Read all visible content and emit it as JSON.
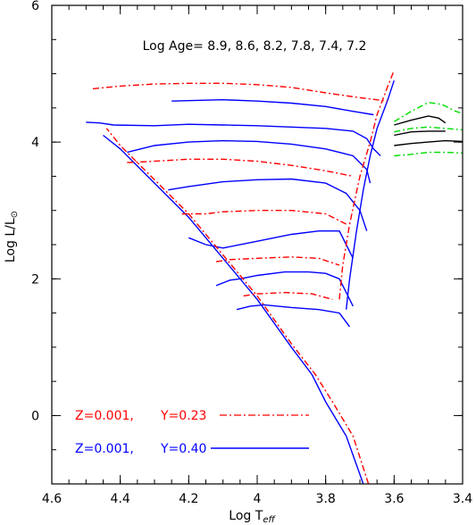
{
  "chart_data": {
    "type": "line",
    "title": "",
    "xlabel_main": "Log T",
    "xlabel_sub": "eff",
    "ylabel_main": "Log L/L",
    "ylabel_sub": "⊙",
    "xlim": [
      4.6,
      3.4
    ],
    "ylim": [
      -1,
      6
    ],
    "x_ticks": [
      4.6,
      4.4,
      4.2,
      4,
      3.8,
      3.6,
      3.4
    ],
    "x_tick_labels": [
      "4.6",
      "4.4",
      "4.2",
      "4",
      "3.8",
      "3.6",
      "3.4"
    ],
    "y_ticks": [
      0,
      2,
      4,
      6
    ],
    "y_tick_labels": [
      "0",
      "2",
      "4",
      "6"
    ],
    "annotation": "Log Age=  8.9, 8.6, 8.2, 7.8, 7.4, 7.2",
    "legend": [
      {
        "label_z": "Z=0.001,",
        "label_y": "Y=0.23",
        "color": "#ff0000",
        "style": "dash-dot"
      },
      {
        "label_z": "Z=0.001,",
        "label_y": "Y=0.40",
        "color": "#0000ff",
        "style": "solid"
      }
    ],
    "series": [
      {
        "id": "blue-ms",
        "color": "#0000ff",
        "style": "solid",
        "points": [
          [
            3.69,
            -1.0
          ],
          [
            3.74,
            -0.3
          ],
          [
            3.8,
            0.2
          ],
          [
            3.84,
            0.6
          ],
          [
            3.9,
            1.0
          ],
          [
            4.0,
            1.7
          ],
          [
            4.1,
            2.3
          ],
          [
            4.2,
            2.9
          ],
          [
            4.3,
            3.4
          ],
          [
            4.4,
            3.9
          ],
          [
            4.45,
            4.1
          ]
        ]
      },
      {
        "id": "blue-iso-1",
        "color": "#0000ff",
        "style": "solid",
        "points": [
          [
            4.5,
            4.29
          ],
          [
            4.46,
            4.28
          ],
          [
            4.42,
            4.25
          ],
          [
            4.3,
            4.24
          ],
          [
            4.2,
            4.26
          ],
          [
            4.1,
            4.25
          ],
          [
            4.0,
            4.24
          ],
          [
            3.9,
            4.22
          ],
          [
            3.8,
            4.2
          ],
          [
            3.72,
            4.16
          ],
          [
            3.68,
            4.05
          ],
          [
            3.66,
            3.9
          ],
          [
            3.64,
            3.8
          ]
        ]
      },
      {
        "id": "blue-iso-2",
        "color": "#0000ff",
        "style": "solid",
        "points": [
          [
            4.38,
            3.85
          ],
          [
            4.3,
            3.95
          ],
          [
            4.2,
            4.0
          ],
          [
            4.1,
            4.02
          ],
          [
            4.0,
            4.01
          ],
          [
            3.9,
            3.97
          ],
          [
            3.8,
            3.9
          ],
          [
            3.72,
            3.8
          ],
          [
            3.68,
            3.6
          ],
          [
            3.67,
            3.4
          ]
        ]
      },
      {
        "id": "blue-iso-3",
        "color": "#0000ff",
        "style": "solid",
        "points": [
          [
            4.26,
            3.3
          ],
          [
            4.2,
            3.35
          ],
          [
            4.1,
            3.42
          ],
          [
            4.0,
            3.45
          ],
          [
            3.9,
            3.46
          ],
          [
            3.8,
            3.4
          ],
          [
            3.74,
            3.25
          ],
          [
            3.7,
            3.0
          ],
          [
            3.68,
            2.7
          ]
        ]
      },
      {
        "id": "blue-iso-4",
        "color": "#0000ff",
        "style": "solid",
        "points": [
          [
            4.2,
            2.6
          ],
          [
            4.15,
            2.5
          ],
          [
            4.1,
            2.45
          ],
          [
            4.0,
            2.55
          ],
          [
            3.9,
            2.65
          ],
          [
            3.82,
            2.7
          ],
          [
            3.76,
            2.7
          ],
          [
            3.74,
            2.5
          ],
          [
            3.72,
            2.3
          ]
        ]
      },
      {
        "id": "blue-iso-5",
        "color": "#0000ff",
        "style": "solid",
        "points": [
          [
            4.12,
            1.9
          ],
          [
            4.08,
            1.98
          ],
          [
            4.05,
            2.0
          ],
          [
            4.0,
            2.05
          ],
          [
            3.92,
            2.1
          ],
          [
            3.85,
            2.1
          ],
          [
            3.8,
            2.08
          ],
          [
            3.76,
            2.0
          ],
          [
            3.74,
            1.8
          ],
          [
            3.72,
            1.6
          ]
        ]
      },
      {
        "id": "blue-iso-6",
        "color": "#0000ff",
        "style": "solid",
        "points": [
          [
            4.06,
            1.55
          ],
          [
            4.02,
            1.6
          ],
          [
            3.98,
            1.62
          ],
          [
            3.9,
            1.58
          ],
          [
            3.82,
            1.55
          ],
          [
            3.76,
            1.5
          ],
          [
            3.73,
            1.3
          ]
        ]
      },
      {
        "id": "blue-rg",
        "color": "#0000ff",
        "style": "solid",
        "points": [
          [
            3.74,
            1.55
          ],
          [
            3.73,
            2.0
          ],
          [
            3.71,
            2.7
          ],
          [
            3.69,
            3.3
          ],
          [
            3.67,
            3.8
          ],
          [
            3.65,
            4.2
          ],
          [
            3.62,
            4.6
          ],
          [
            3.6,
            4.9
          ]
        ]
      },
      {
        "id": "blue-loop-top",
        "color": "#0000ff",
        "style": "solid",
        "points": [
          [
            4.25,
            4.6
          ],
          [
            4.1,
            4.62
          ],
          [
            4.0,
            4.6
          ],
          [
            3.9,
            4.57
          ],
          [
            3.8,
            4.52
          ],
          [
            3.72,
            4.45
          ],
          [
            3.66,
            4.4
          ]
        ]
      },
      {
        "id": "red-ms",
        "color": "#ff0000",
        "style": "dashdot",
        "points": [
          [
            3.675,
            -1.0
          ],
          [
            3.72,
            -0.3
          ],
          [
            3.78,
            0.2
          ],
          [
            3.83,
            0.6
          ],
          [
            3.9,
            1.05
          ],
          [
            4.0,
            1.75
          ],
          [
            4.1,
            2.35
          ],
          [
            4.2,
            2.95
          ],
          [
            4.3,
            3.45
          ],
          [
            4.4,
            3.95
          ],
          [
            4.44,
            4.2
          ]
        ]
      },
      {
        "id": "red-iso-1",
        "color": "#ff0000",
        "style": "dashdot",
        "points": [
          [
            4.48,
            4.78
          ],
          [
            4.4,
            4.82
          ],
          [
            4.3,
            4.85
          ],
          [
            4.2,
            4.86
          ],
          [
            4.1,
            4.86
          ],
          [
            4.0,
            4.84
          ],
          [
            3.9,
            4.8
          ],
          [
            3.8,
            4.72
          ],
          [
            3.7,
            4.65
          ],
          [
            3.62,
            4.6
          ]
        ]
      },
      {
        "id": "red-iso-2",
        "color": "#ff0000",
        "style": "dashdot",
        "points": [
          [
            4.38,
            3.7
          ],
          [
            4.3,
            3.72
          ],
          [
            4.2,
            3.75
          ],
          [
            4.1,
            3.75
          ],
          [
            4.0,
            3.72
          ],
          [
            3.9,
            3.66
          ],
          [
            3.8,
            3.58
          ],
          [
            3.72,
            3.5
          ]
        ]
      },
      {
        "id": "red-iso-3",
        "color": "#ff0000",
        "style": "dashdot",
        "points": [
          [
            4.22,
            2.95
          ],
          [
            4.15,
            2.95
          ],
          [
            4.1,
            2.98
          ],
          [
            4.0,
            3.0
          ],
          [
            3.9,
            3.0
          ],
          [
            3.8,
            2.95
          ],
          [
            3.74,
            2.8
          ]
        ]
      },
      {
        "id": "red-iso-4",
        "color": "#ff0000",
        "style": "dashdot",
        "points": [
          [
            4.12,
            2.25
          ],
          [
            4.08,
            2.28
          ],
          [
            4.0,
            2.3
          ],
          [
            3.9,
            2.32
          ],
          [
            3.82,
            2.3
          ],
          [
            3.76,
            2.2
          ]
        ]
      },
      {
        "id": "red-iso-5",
        "color": "#ff0000",
        "style": "dashdot",
        "points": [
          [
            4.04,
            1.75
          ],
          [
            4.0,
            1.78
          ],
          [
            3.92,
            1.8
          ],
          [
            3.84,
            1.78
          ],
          [
            3.78,
            1.7
          ]
        ]
      },
      {
        "id": "red-rg",
        "color": "#ff0000",
        "style": "dashdot",
        "points": [
          [
            3.76,
            1.7
          ],
          [
            3.75,
            2.2
          ],
          [
            3.73,
            2.8
          ],
          [
            3.7,
            3.5
          ],
          [
            3.67,
            4.0
          ],
          [
            3.65,
            4.4
          ],
          [
            3.62,
            4.8
          ],
          [
            3.6,
            5.05
          ]
        ]
      },
      {
        "id": "green-top",
        "color": "#00dd00",
        "style": "dashdot",
        "points": [
          [
            3.6,
            4.3
          ],
          [
            3.55,
            4.45
          ],
          [
            3.5,
            4.58
          ],
          [
            3.46,
            4.55
          ],
          [
            3.42,
            4.45
          ],
          [
            3.4,
            4.42
          ]
        ]
      },
      {
        "id": "green-mid",
        "color": "#00dd00",
        "style": "dashdot",
        "points": [
          [
            3.6,
            4.15
          ],
          [
            3.55,
            4.2
          ],
          [
            3.5,
            4.22
          ],
          [
            3.45,
            4.2
          ],
          [
            3.4,
            4.18
          ]
        ]
      },
      {
        "id": "green-low",
        "color": "#00dd00",
        "style": "dashdot",
        "points": [
          [
            3.6,
            3.8
          ],
          [
            3.55,
            3.82
          ],
          [
            3.5,
            3.85
          ],
          [
            3.45,
            3.85
          ],
          [
            3.4,
            3.84
          ]
        ]
      },
      {
        "id": "black-top",
        "color": "#000000",
        "style": "solid",
        "points": [
          [
            3.6,
            4.25
          ],
          [
            3.55,
            4.32
          ],
          [
            3.5,
            4.38
          ],
          [
            3.47,
            4.35
          ],
          [
            3.45,
            4.28
          ]
        ]
      },
      {
        "id": "black-mid",
        "color": "#000000",
        "style": "solid",
        "points": [
          [
            3.6,
            4.1
          ],
          [
            3.55,
            4.15
          ],
          [
            3.5,
            4.16
          ],
          [
            3.45,
            4.16
          ]
        ]
      },
      {
        "id": "black-low",
        "color": "#000000",
        "style": "solid",
        "points": [
          [
            3.6,
            3.95
          ],
          [
            3.55,
            3.98
          ],
          [
            3.5,
            4.0
          ],
          [
            3.45,
            4.02
          ],
          [
            3.4,
            4.01
          ]
        ]
      }
    ]
  }
}
